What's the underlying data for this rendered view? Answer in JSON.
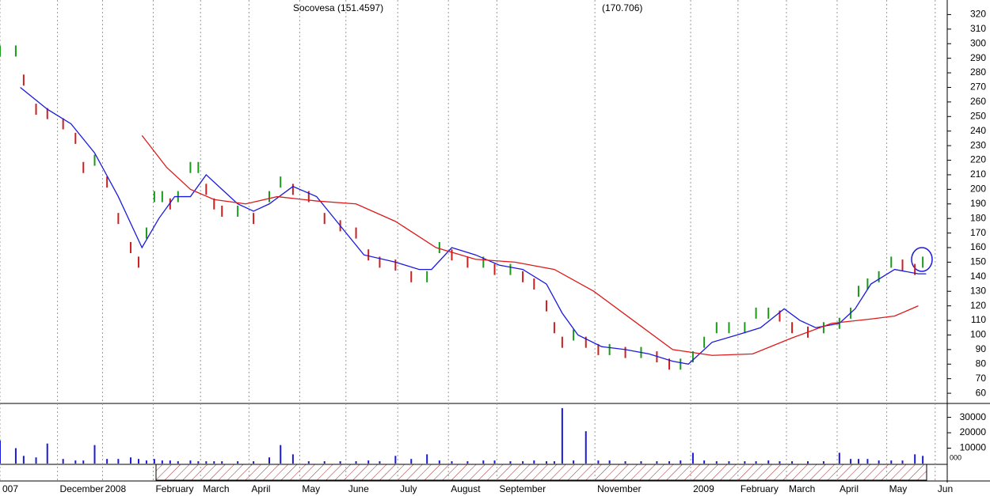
{
  "chart_data": [
    {
      "type": "price",
      "title": "Socovesa (151.4597)",
      "subtitle": "(170.706)",
      "xlim": [
        0,
        84
      ],
      "ylim": [
        53,
        330
      ],
      "yticks": [
        60,
        70,
        80,
        90,
        100,
        110,
        120,
        130,
        140,
        150,
        160,
        170,
        180,
        190,
        200,
        210,
        220,
        230,
        240,
        250,
        260,
        270,
        280,
        290,
        300,
        310,
        320
      ],
      "xticks": [
        {
          "value": 0,
          "label": "007"
        },
        {
          "value": 5.1,
          "label": "December"
        },
        {
          "value": 9.1,
          "label": "2008"
        },
        {
          "value": 13.6,
          "label": "February"
        },
        {
          "value": 17.8,
          "label": "March"
        },
        {
          "value": 22.1,
          "label": "April"
        },
        {
          "value": 26.6,
          "label": "May"
        },
        {
          "value": 30.7,
          "label": "June"
        },
        {
          "value": 35.3,
          "label": "July"
        },
        {
          "value": 39.8,
          "label": "August"
        },
        {
          "value": 44.1,
          "label": "September"
        },
        {
          "value": 52.8,
          "label": "November"
        },
        {
          "value": 61.3,
          "label": "2009"
        },
        {
          "value": 65.5,
          "label": "February"
        },
        {
          "value": 69.8,
          "label": "March"
        },
        {
          "value": 74.3,
          "label": "April"
        },
        {
          "value": 78.7,
          "label": "May"
        },
        {
          "value": 83,
          "label": "Jun"
        }
      ],
      "grid": true,
      "up_color": "#1a9a1a",
      "down_color": "#cc2020",
      "series": [
        {
          "kind": "bars",
          "x": [
            0,
            1.4,
            2.1,
            3.2,
            4.2,
            5.6,
            6.7,
            7.4,
            8.4,
            9.5,
            10.5,
            11.6,
            12.3,
            13.0,
            13.7,
            14.4,
            15.1,
            15.8,
            16.9,
            17.6,
            18.3,
            19.0,
            19.7,
            21.1,
            22.5,
            23.9,
            24.9,
            26.0,
            27.4,
            28.8,
            30.2,
            31.6,
            32.7,
            33.7,
            35.1,
            36.5,
            37.9,
            39.0,
            40.1,
            41.5,
            42.9,
            43.9,
            45.3,
            46.4,
            47.4,
            48.5,
            49.2,
            49.9,
            50.9,
            52.0,
            53.1,
            54.1,
            55.5,
            56.9,
            58.3,
            59.4,
            60.4,
            61.5,
            62.5,
            63.6,
            64.7,
            66.1,
            67.1,
            68.2,
            69.2,
            70.3,
            71.7,
            73.1,
            74.5,
            75.5,
            76.2,
            77.0,
            78.0,
            79.1,
            80.1,
            81.2,
            81.9
          ],
          "values": [
            295,
            295,
            275,
            255,
            252,
            245,
            235,
            215,
            220,
            205,
            180,
            160,
            150,
            170,
            195,
            195,
            190,
            195,
            215,
            215,
            200,
            190,
            185,
            185,
            180,
            195,
            205,
            200,
            195,
            180,
            175,
            170,
            155,
            150,
            148,
            140,
            140,
            160,
            155,
            150,
            150,
            145,
            145,
            140,
            135,
            120,
            105,
            95,
            100,
            95,
            90,
            90,
            88,
            88,
            85,
            80,
            80,
            85,
            95,
            105,
            105,
            105,
            115,
            115,
            113,
            105,
            102,
            105,
            108,
            115,
            130,
            135,
            140,
            150,
            148,
            145,
            150
          ]
        },
        {
          "kind": "line",
          "color": "#1a1adc",
          "x": [
            1.8,
            4.2,
            6.3,
            8.4,
            10.5,
            12.6,
            14.1,
            15.5,
            16.9,
            18.3,
            19.7,
            21.1,
            22.5,
            23.9,
            26.0,
            28.1,
            30.2,
            32.3,
            35.1,
            37.2,
            38.3,
            40.1,
            42.2,
            44.3,
            46.4,
            48.5,
            49.9,
            51.3,
            53.4,
            55.5,
            57.6,
            59.7,
            61.1,
            63.2,
            65.4,
            67.5,
            69.6,
            71.0,
            72.4,
            74.5,
            75.9,
            77.3,
            79.4,
            81.5,
            82.2
          ],
          "values": [
            270,
            255,
            245,
            225,
            195,
            160,
            180,
            195,
            195,
            210,
            200,
            190,
            185,
            190,
            202,
            195,
            175,
            155,
            150,
            145,
            145,
            160,
            155,
            148,
            145,
            135,
            115,
            100,
            92,
            90,
            87,
            82,
            80,
            95,
            100,
            105,
            118,
            110,
            105,
            108,
            118,
            135,
            145,
            142,
            142
          ]
        },
        {
          "kind": "line",
          "color": "#dc1a1a",
          "x": [
            12.6,
            14.8,
            16.9,
            19.0,
            21.8,
            24.6,
            28.1,
            31.6,
            35.1,
            38.7,
            42.2,
            45.7,
            49.2,
            52.7,
            56.2,
            59.7,
            63.2,
            66.8,
            70.3,
            73.8,
            77.3,
            79.4,
            81.5
          ],
          "values": [
            237,
            215,
            200,
            193,
            190,
            195,
            192,
            190,
            178,
            160,
            152,
            150,
            145,
            130,
            110,
            90,
            86,
            87,
            98,
            108,
            111,
            113,
            120
          ]
        }
      ]
    },
    {
      "type": "volume",
      "ylabel": "000",
      "xlim": [
        0,
        84
      ],
      "ylim": [
        0,
        38000
      ],
      "yticks": [
        10000,
        20000,
        30000
      ],
      "color": "#1a1adc",
      "x": [
        0,
        1.4,
        2.1,
        3.2,
        4.2,
        5.6,
        6.7,
        7.4,
        8.4,
        9.5,
        10.5,
        11.6,
        12.3,
        13.0,
        13.7,
        14.4,
        15.1,
        15.8,
        16.9,
        17.6,
        18.3,
        19.0,
        19.7,
        21.1,
        22.5,
        23.9,
        24.9,
        26.0,
        27.4,
        28.8,
        30.2,
        31.6,
        32.7,
        33.7,
        35.1,
        36.5,
        37.9,
        39.0,
        40.1,
        41.5,
        42.9,
        43.9,
        45.3,
        46.4,
        47.4,
        48.5,
        49.2,
        49.9,
        50.9,
        52.0,
        53.1,
        54.1,
        55.5,
        56.9,
        58.3,
        59.4,
        60.4,
        61.5,
        62.5,
        63.6,
        64.7,
        66.1,
        67.1,
        68.2,
        69.2,
        70.3,
        71.7,
        73.1,
        74.5,
        75.5,
        76.2,
        77.0,
        78.0,
        79.1,
        80.1,
        81.2,
        81.9
      ],
      "values": [
        15000,
        10000,
        5000,
        4000,
        13000,
        3000,
        2000,
        2000,
        12000,
        3000,
        3000,
        4000,
        3000,
        2000,
        3000,
        2000,
        2000,
        1500,
        2000,
        1500,
        1500,
        1500,
        1500,
        1500,
        1500,
        4000,
        12000,
        6000,
        1500,
        1500,
        1500,
        1500,
        2000,
        1500,
        5000,
        3000,
        6000,
        2000,
        1500,
        1500,
        2000,
        2000,
        1500,
        1500,
        2000,
        1500,
        1500,
        36000,
        2000,
        21000,
        2000,
        2000,
        1500,
        1500,
        1500,
        1500,
        2000,
        7000,
        2000,
        1500,
        1500,
        1500,
        1500,
        2000,
        1500,
        1500,
        1500,
        1500,
        7000,
        3000,
        3000,
        3000,
        2000,
        2000,
        2000,
        6000,
        5000
      ]
    }
  ]
}
